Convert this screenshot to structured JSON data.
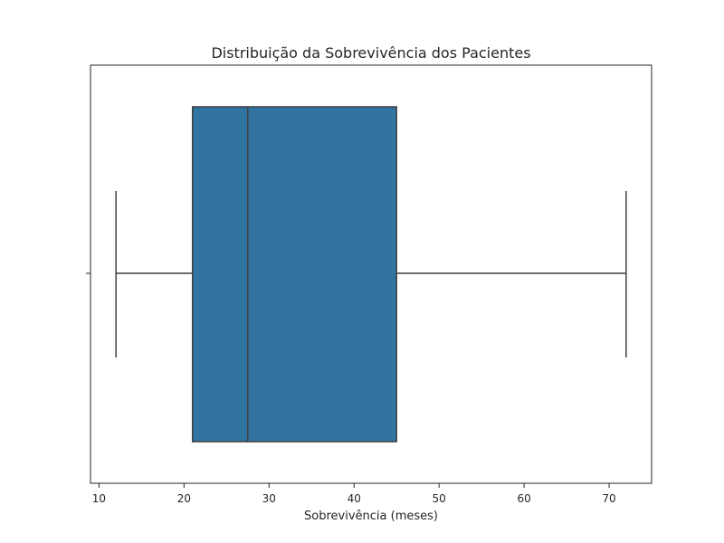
{
  "chart_data": {
    "type": "boxplot",
    "orientation": "horizontal",
    "title": "Distribuição da Sobrevivência dos Pacientes",
    "xlabel": "Sobrevivência (meses)",
    "ylabel": "",
    "xlim": [
      9,
      75
    ],
    "xticks": [
      10,
      20,
      30,
      40,
      50,
      60,
      70
    ],
    "grid": false,
    "box": {
      "min": 12,
      "q1": 21,
      "median": 27.5,
      "q3": 45,
      "max": 72,
      "color": "#3274a1",
      "line_color": "#3f3f3f"
    }
  }
}
